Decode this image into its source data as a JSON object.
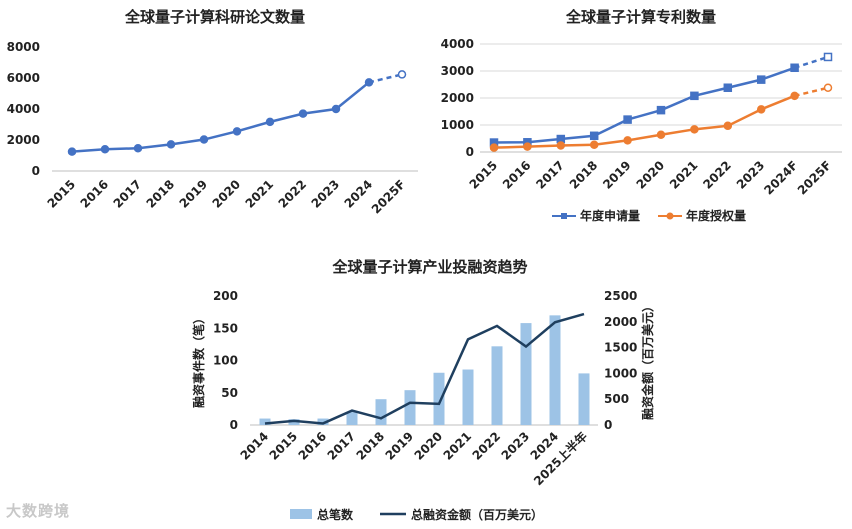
{
  "watermark": "大数跨境",
  "chart_data": [
    {
      "type": "line",
      "title": "全球量子计算科研论文数量",
      "categories": [
        "2015",
        "2016",
        "2017",
        "2018",
        "2019",
        "2020",
        "2021",
        "2022",
        "2023",
        "2024",
        "2025F"
      ],
      "ylim": [
        0,
        8000
      ],
      "yticks": [
        0,
        2000,
        4000,
        6000,
        8000
      ],
      "grid": false,
      "series": [
        {
          "values": [
            1250,
            1400,
            1470,
            1720,
            2030,
            2560,
            3170,
            3700,
            4000,
            5720,
            6230
          ],
          "forecast_from_index": 9,
          "color": "#4472c4",
          "marker": "circle"
        }
      ]
    },
    {
      "type": "line",
      "title": "全球量子计算专利数量",
      "categories": [
        "2015",
        "2016",
        "2017",
        "2018",
        "2019",
        "2020",
        "2021",
        "2022",
        "2023",
        "2024F",
        "2025F"
      ],
      "ylim": [
        0,
        4000
      ],
      "yticks": [
        0,
        1000,
        2000,
        3000,
        4000
      ],
      "grid": true,
      "legend": "bottom",
      "series": [
        {
          "name": "年度申请量",
          "values": [
            350,
            360,
            480,
            600,
            1200,
            1550,
            2080,
            2380,
            2680,
            3120,
            3520
          ],
          "forecast_from_index": 9,
          "color": "#4472c4",
          "marker": "square"
        },
        {
          "name": "年度授权量",
          "values": [
            160,
            200,
            240,
            270,
            430,
            640,
            840,
            970,
            1580,
            2080,
            2380
          ],
          "forecast_from_index": 9,
          "color": "#ed7d31",
          "marker": "circle"
        }
      ]
    },
    {
      "type": "bar",
      "title": "全球量子计算产业投融资趋势",
      "categories": [
        "2014",
        "2015",
        "2016",
        "2017",
        "2018",
        "2019",
        "2020",
        "2021",
        "2022",
        "2023",
        "2024",
        "2025上半年"
      ],
      "ylabel": "融资事件数（笔）",
      "y2label": "融资金额（百万美元）",
      "ylim": [
        0,
        200
      ],
      "yticks": [
        0,
        50,
        100,
        150,
        200
      ],
      "y2lim": [
        0,
        2500
      ],
      "y2ticks": [
        0,
        500,
        1000,
        1500,
        2000,
        2500
      ],
      "grid": false,
      "legend": "bottom",
      "series": [
        {
          "name": "总笔数",
          "kind": "bar",
          "axis": "left",
          "color": "#9dc3e6",
          "values": [
            10,
            9,
            10,
            20,
            40,
            54,
            81,
            86,
            122,
            158,
            170,
            80
          ]
        },
        {
          "name": "总融资金额（百万美元）",
          "kind": "line",
          "axis": "right",
          "color": "#1f3f5f",
          "values": [
            30,
            80,
            30,
            280,
            130,
            430,
            410,
            1660,
            1920,
            1520,
            1990,
            2150
          ]
        }
      ]
    }
  ]
}
